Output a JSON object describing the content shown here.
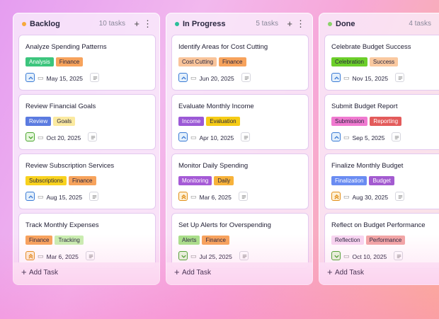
{
  "add_task_label": "Add Task",
  "columns": [
    {
      "title": "Backlog",
      "count": "10 tasks",
      "dot": "#f7a93b",
      "cards": [
        {
          "title": "Analyze Spending Patterns",
          "tags": [
            {
              "label": "Analysis",
              "color": "#3cc57d"
            },
            {
              "label": "Finance",
              "color": "#f7a35c"
            }
          ],
          "date": "May 15, 2025",
          "priority": "up"
        },
        {
          "title": "Review Financial Goals",
          "tags": [
            {
              "label": "Review",
              "color": "#5b7be0"
            },
            {
              "label": "Goals",
              "color": "#fbeaa0"
            }
          ],
          "date": "Oct 20, 2025",
          "priority": "down"
        },
        {
          "title": "Review Subscription Services",
          "tags": [
            {
              "label": "Subscriptions",
              "color": "#f8d21e"
            },
            {
              "label": "Finance",
              "color": "#f7a35c"
            }
          ],
          "date": "Aug 15, 2025",
          "priority": "up"
        },
        {
          "title": "Track Monthly Expenses",
          "tags": [
            {
              "label": "Finance",
              "color": "#f7a35c"
            },
            {
              "label": "Tracking",
              "color": "#c9eeb0"
            }
          ],
          "date": "Mar 6, 2025",
          "priority": "double-up"
        }
      ]
    },
    {
      "title": "In Progress",
      "count": "5 tasks",
      "dot": "#2bbf9a",
      "cards": [
        {
          "title": "Identify Areas for Cost Cutting",
          "tags": [
            {
              "label": "Cost Cutting",
              "color": "#f9c49a"
            },
            {
              "label": "Finance",
              "color": "#f7a35c"
            }
          ],
          "date": "Jun 20, 2025",
          "priority": "up"
        },
        {
          "title": "Evaluate Monthly Income",
          "tags": [
            {
              "label": "Income",
              "color": "#9b59d6"
            },
            {
              "label": "Evaluation",
              "color": "#f6cc15"
            }
          ],
          "date": "Apr 10, 2025",
          "priority": "up"
        },
        {
          "title": "Monitor Daily Spending",
          "tags": [
            {
              "label": "Monitoring",
              "color": "#a55ad6"
            },
            {
              "label": "Daily",
              "color": "#f7b23a"
            }
          ],
          "date": "Mar 6, 2025",
          "priority": "double-up"
        },
        {
          "title": "Set Up Alerts for Overspending",
          "tags": [
            {
              "label": "Alerts",
              "color": "#a9e08a"
            },
            {
              "label": "Finance",
              "color": "#f7a35c"
            }
          ],
          "date": "Jul 25, 2025",
          "priority": "down"
        }
      ]
    },
    {
      "title": "Done",
      "count": "4 tasks",
      "dot": "#8bd36a",
      "cards": [
        {
          "title": "Celebrate Budget Success",
          "tags": [
            {
              "label": "Celebration",
              "color": "#6ccf2a"
            },
            {
              "label": "Success",
              "color": "#fac9a0"
            }
          ],
          "date": "Nov 15, 2025",
          "priority": "up"
        },
        {
          "title": "Submit Budget Report",
          "tags": [
            {
              "label": "Submission",
              "color": "#f07ad0"
            },
            {
              "label": "Reporting",
              "color": "#e35b5b"
            }
          ],
          "date": "Sep 5, 2025",
          "priority": "up"
        },
        {
          "title": "Finalize Monthly Budget",
          "tags": [
            {
              "label": "Finalization",
              "color": "#6a8cf2"
            },
            {
              "label": "Budget",
              "color": "#a35bd0"
            }
          ],
          "date": "Aug 30, 2025",
          "priority": "double-up"
        },
        {
          "title": "Reflect on Budget Performance",
          "tags": [
            {
              "label": "Reflection",
              "color": "#f7d5f0"
            },
            {
              "label": "Performance",
              "color": "#f2a6a6"
            }
          ],
          "date": "Oct 10, 2025",
          "priority": "down"
        }
      ]
    }
  ]
}
